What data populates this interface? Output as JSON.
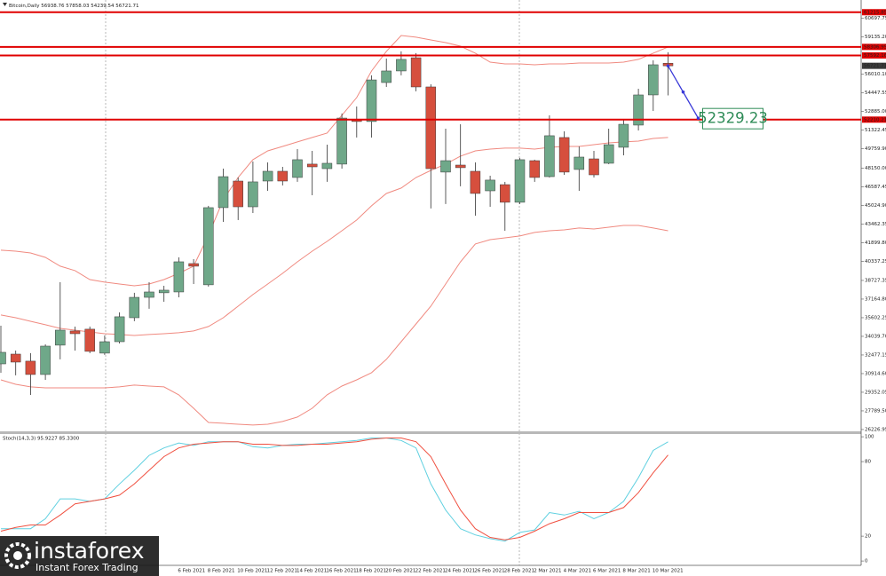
{
  "chart_data": [
    {
      "type": "candlestick",
      "title": "Bitcoin,Daily",
      "categories": [
        null,
        null,
        null,
        null,
        null,
        null,
        null,
        null,
        null,
        null,
        null,
        null,
        "6 Feb 2021",
        null,
        "8 Feb 2021",
        null,
        "10 Feb 2021",
        null,
        "12 Feb 2021",
        null,
        "14 Feb 2021",
        null,
        "16 Feb 2021",
        null,
        "18 Feb 2021",
        null,
        "20 Feb 2021",
        null,
        "22 Feb 2021",
        null,
        "24 Feb 2021",
        null,
        "26 Feb 2021",
        null,
        "28 Feb 2021",
        null,
        "2 Mar 2021",
        null,
        "4 Mar 2021",
        null,
        "6 Mar 2021",
        null,
        "8 Mar 2021",
        null,
        "10 Mar 2021",
        null
      ],
      "open": [
        31730,
        32550,
        31960,
        30840,
        33300,
        34490,
        34640,
        32630,
        33590,
        35600,
        37310,
        37690,
        37760,
        40140,
        38360,
        44830,
        47060,
        44900,
        47060,
        47880,
        47360,
        48480,
        48100,
        48480,
        52200,
        52050,
        55320,
        56290,
        57400,
        54950,
        47810,
        48400,
        47880,
        46240,
        46760,
        45280,
        48770,
        47430,
        50710,
        48030,
        48920,
        48550,
        49890,
        51750,
        54280,
        56938.76
      ],
      "high": [
        34930,
        32850,
        32630,
        33370,
        38580,
        34860,
        34860,
        34110,
        36050,
        37690,
        38580,
        38280,
        40660,
        40510,
        44980,
        48100,
        47360,
        48700,
        48620,
        48250,
        49740,
        49590,
        50110,
        52720,
        53310,
        55920,
        57330,
        57930,
        57780,
        55170,
        51450,
        51820,
        48620,
        47510,
        46990,
        49000,
        48850,
        52570,
        51230,
        49960,
        49590,
        51450,
        52200,
        54800,
        57180,
        57858.03
      ],
      "low": [
        30990,
        30770,
        29130,
        30390,
        32110,
        32850,
        32630,
        32480,
        33440,
        35310,
        36350,
        36940,
        37310,
        38430,
        38210,
        43640,
        43790,
        44380,
        46240,
        46690,
        46990,
        45870,
        46990,
        48100,
        50710,
        50710,
        54950,
        55920,
        54580,
        44760,
        45130,
        46620,
        44160,
        44900,
        42890,
        45130,
        46990,
        47360,
        47580,
        46240,
        47360,
        48480,
        49220,
        51300,
        52940,
        54239.54
      ],
      "close": [
        32700,
        31880,
        30840,
        33220,
        34560,
        34260,
        32780,
        33590,
        35680,
        37310,
        37760,
        37910,
        40290,
        39920,
        44830,
        47430,
        44900,
        46990,
        47880,
        47060,
        48850,
        48250,
        48550,
        52340,
        52050,
        55540,
        56290,
        57260,
        54950,
        48100,
        48770,
        48180,
        46020,
        47140,
        45280,
        48850,
        47360,
        50860,
        47810,
        49070,
        47580,
        50110,
        51820,
        54280,
        56810,
        56721.71
      ],
      "up_color": "#6fa889",
      "down_color": "#d64f3d",
      "bands": {
        "color": "#f08a80",
        "upper": [
          41260,
          41180,
          41030,
          40660,
          39920,
          39550,
          38800,
          38580,
          38430,
          38280,
          38430,
          38800,
          39320,
          39920,
          42520,
          45500,
          47360,
          48850,
          49590,
          49960,
          50340,
          50710,
          51080,
          52570,
          54060,
          56290,
          57930,
          59260,
          59120,
          58890,
          58670,
          58370,
          57780,
          57030,
          56880,
          56880,
          56810,
          56880,
          56880,
          56960,
          56960,
          56960,
          57030,
          57260,
          57780,
          58300
        ],
        "middle": [
          35830,
          35600,
          35300,
          35010,
          34710,
          34560,
          34410,
          34260,
          34190,
          34110,
          34190,
          34260,
          34340,
          34490,
          34860,
          35600,
          36570,
          37540,
          38430,
          39320,
          40290,
          41180,
          42000,
          42890,
          43790,
          44980,
          46020,
          46470,
          47360,
          47950,
          48480,
          49150,
          49590,
          49740,
          49820,
          49820,
          49740,
          49890,
          49960,
          49960,
          50110,
          50260,
          50340,
          50410,
          50630,
          50710
        ],
        "lower": [
          30390,
          30020,
          29800,
          29720,
          29720,
          29720,
          29720,
          29720,
          29800,
          29950,
          29870,
          29800,
          29130,
          28010,
          26820,
          26750,
          26670,
          26600,
          26670,
          26900,
          27270,
          28010,
          29130,
          29870,
          30390,
          30990,
          32110,
          33590,
          35080,
          36570,
          38430,
          40290,
          41780,
          42150,
          42300,
          42450,
          42750,
          42890,
          42970,
          43120,
          43040,
          43190,
          43340,
          43340,
          43120,
          42890
        ]
      },
      "levels": [
        {
          "value": 61215.85,
          "color": "#e00000"
        },
        {
          "value": 58306.95,
          "color": "#e00000"
        },
        {
          "value": 57592.16,
          "color": "#e00000"
        },
        {
          "value": 52210.21,
          "color": "#e00000"
        }
      ],
      "projection": {
        "target": 52329.23,
        "color": "#3a3ad8",
        "label_color": "#2e8b57"
      },
      "ylim": [
        26000,
        62240
      ],
      "yticks": [
        {
          "value": 60697.75,
          "label": "60697.75"
        },
        {
          "value": 59135.2,
          "label": "59135.20"
        },
        {
          "value": 56010.1,
          "label": "56010.10"
        },
        54447.55,
        {
          "value": 52885,
          "label": "52885.00"
        },
        51322.45,
        {
          "value": 49759.9,
          "label": "49759.90"
        },
        {
          "value": 48150,
          "label": "48150.00"
        },
        46587.45,
        {
          "value": 45024.9,
          "label": "45024.90"
        },
        43462.35,
        {
          "value": 41899.8,
          "label": "41899.80"
        },
        40337.25,
        38727.35,
        {
          "value": 37164.8,
          "label": "37164.80"
        },
        35602.25,
        {
          "value": 34039.7,
          "label": "34039.70"
        },
        32477.15,
        {
          "value": 30914.6,
          "label": "30914.60"
        },
        29352.05,
        {
          "value": 27789.5,
          "label": "27789.50"
        },
        26226.95
      ],
      "grid": false
    },
    {
      "type": "line",
      "title": "Stoch(14,3,3) 95.9227 85.3300",
      "series": [
        {
          "color": "#5fd0e0",
          "values": [
            26,
            26,
            26,
            34,
            50,
            50,
            48,
            50,
            62,
            73,
            85,
            91,
            95,
            93,
            96,
            96,
            96,
            92,
            91,
            93,
            94,
            94,
            95,
            96,
            97,
            99,
            99,
            97,
            91,
            62,
            41,
            26,
            21,
            18,
            16,
            23,
            25,
            39,
            37,
            40,
            34,
            39,
            48,
            67,
            89,
            95.9
          ]
        },
        {
          "color": "#f05040",
          "values": [
            24,
            27,
            29,
            29,
            37,
            46,
            48,
            50,
            53,
            62,
            73,
            84,
            91,
            94,
            95,
            96,
            96,
            94,
            94,
            93,
            93,
            94,
            94,
            95,
            96,
            98,
            99,
            99,
            96,
            84,
            62,
            41,
            26,
            19,
            17,
            19,
            24,
            30,
            34,
            39,
            39,
            39,
            43,
            55,
            71,
            85.3
          ]
        }
      ],
      "ylim": [
        -3.5,
        101.5
      ],
      "yticks": [
        100,
        80,
        20,
        0
      ],
      "grid": false
    }
  ],
  "logo": {
    "name": "instaforex",
    "tagline": "Instant Forex Trading"
  }
}
